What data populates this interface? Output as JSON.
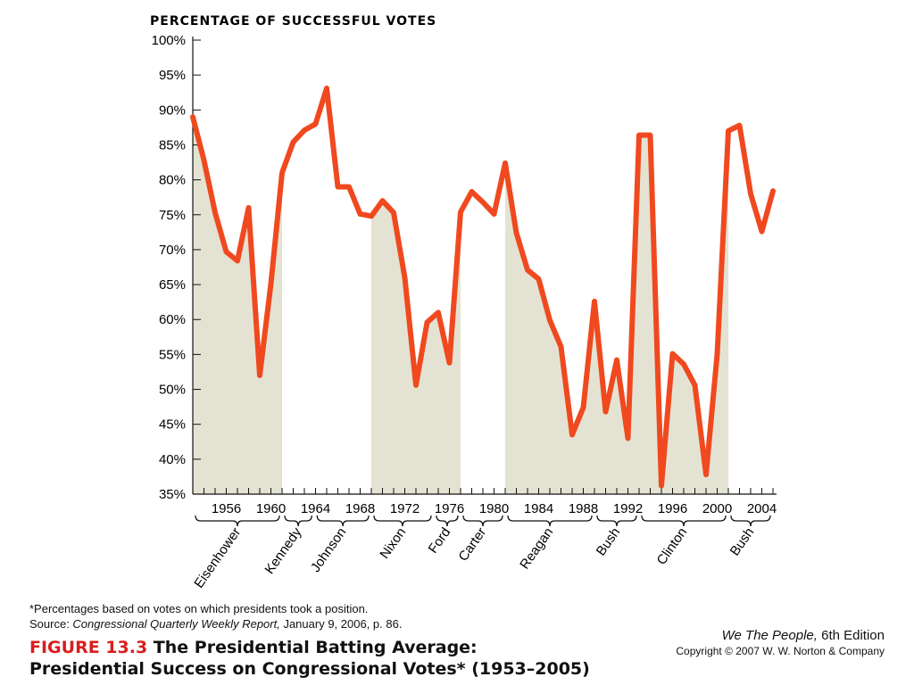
{
  "chart_data": {
    "type": "line",
    "title": "PERCENTAGE OF SUCCESSFUL VOTES",
    "ylim": [
      35,
      100
    ],
    "xlim": [
      1953,
      2005
    ],
    "yticks": [
      "100%",
      "95%",
      "90%",
      "85%",
      "80%",
      "75%",
      "70%",
      "65%",
      "60%",
      "55%",
      "50%",
      "45%",
      "40%",
      "35%"
    ],
    "xticks": [
      "1956",
      "1960",
      "1964",
      "1968",
      "1972",
      "1976",
      "1980",
      "1984",
      "1988",
      "1992",
      "1996",
      "2000",
      "2004"
    ],
    "line_color": "#f0491f",
    "shade_color": "#e4e3d3",
    "series": [
      {
        "x": [
          1953,
          1954,
          1955,
          1956,
          1957,
          1958,
          1959,
          1960,
          1961,
          1962,
          1963,
          1964,
          1965,
          1966,
          1967,
          1968,
          1969,
          1970,
          1971,
          1972,
          1973,
          1974,
          1975,
          1976,
          1977,
          1978,
          1979,
          1980,
          1981,
          1982,
          1983,
          1984,
          1985,
          1986,
          1987,
          1988,
          1989,
          1990,
          1991,
          1992,
          1993,
          1994,
          1995,
          1996,
          1997,
          1998,
          1999,
          2000,
          2001,
          2002,
          2003,
          2004,
          2005
        ],
        "values": [
          89,
          82.8,
          75.3,
          69.7,
          68.4,
          76,
          52,
          65.1,
          81,
          85.4,
          87.1,
          88,
          93.1,
          79,
          79,
          75.1,
          74.8,
          77,
          75.3,
          66,
          50.6,
          59.6,
          61,
          53.8,
          75.4,
          78.3,
          76.8,
          75.1,
          82.4,
          72.4,
          67.1,
          65.8,
          59.9,
          56.1,
          43.5,
          47.4,
          62.6,
          46.8,
          54.2,
          43,
          86.4,
          86.4,
          36.2,
          55.1,
          53.6,
          50.6,
          37.8,
          55,
          87,
          87.8,
          78,
          72.6,
          78.4
        ]
      }
    ],
    "shaded_periods": [
      [
        1953,
        1961
      ],
      [
        1969,
        1977
      ],
      [
        1981,
        1993
      ],
      [
        1993,
        2001
      ]
    ],
    "presidents": [
      {
        "name": "Eisenhower",
        "start": 1953,
        "end": 1961
      },
      {
        "name": "Kennedy",
        "start": 1961,
        "end": 1963.9
      },
      {
        "name": "Johnson",
        "start": 1963.9,
        "end": 1969
      },
      {
        "name": "Nixon",
        "start": 1969,
        "end": 1974.6
      },
      {
        "name": "Ford",
        "start": 1974.6,
        "end": 1977
      },
      {
        "name": "Carter",
        "start": 1977,
        "end": 1981
      },
      {
        "name": "Reagan",
        "start": 1981,
        "end": 1989
      },
      {
        "name": "Bush",
        "start": 1989,
        "end": 1993
      },
      {
        "name": "Clinton",
        "start": 1993,
        "end": 2001
      },
      {
        "name": "Bush",
        "start": 2001,
        "end": 2005
      }
    ]
  },
  "footnote": "*Percentages based on votes on which presidents took a position.",
  "source": {
    "prefix": "Source: ",
    "publication": "Congressional Quarterly Weekly Report,",
    "suffix": " January 9, 2006, p. 86."
  },
  "figure": {
    "number": "FIGURE 13.3",
    "title_line1": " The Presidential Batting Average:",
    "title_line2": "Presidential Success on Congressional Votes* (1953–2005)"
  },
  "edition": {
    "book": "We The People,",
    "edition_text": " 6th Edition",
    "copyright": "Copyright © 2007 W. W. Norton & Company"
  }
}
